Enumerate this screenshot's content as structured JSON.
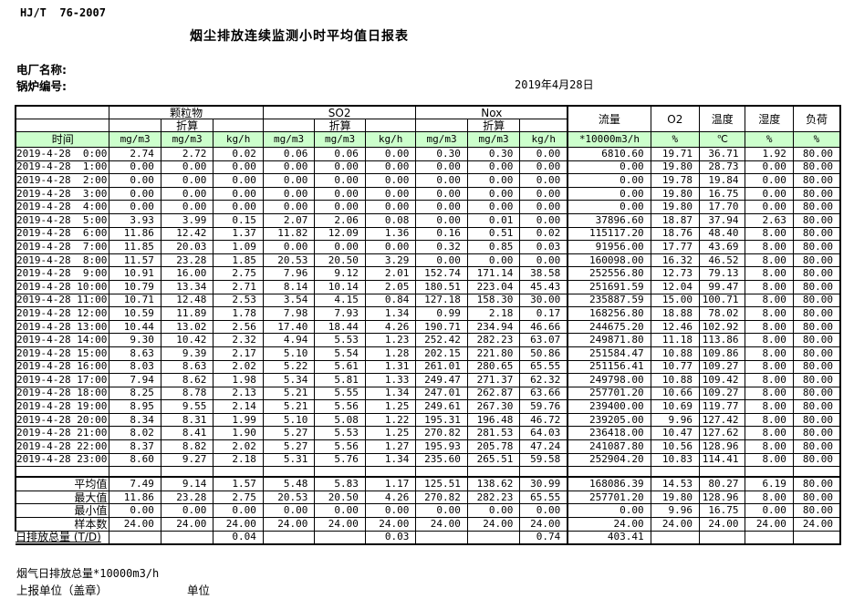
{
  "page": {
    "standard": "HJ/T  76-2007",
    "title": "烟尘排放连续监测小时平均值日报表",
    "plant_label": "电厂名称:",
    "boiler_label": "锅炉编号:",
    "date": "2019年4月28日",
    "footer_note": "烟气日排放总量*10000m3/h",
    "report_unit_label": "上报单位（盖章）",
    "unit_label": "单位"
  },
  "table": {
    "time_label": "时间",
    "converted_label": "折算",
    "groups": {
      "pm": "颗粒物",
      "so2": "SO2",
      "nox": "Nox",
      "flow": "流量",
      "o2": "O2",
      "temp": "温度",
      "humidity": "湿度",
      "load": "负荷"
    },
    "units": [
      "mg/m3",
      "mg/m3",
      "kg/h",
      "mg/m3",
      "mg/m3",
      "kg/h",
      "mg/m3",
      "mg/m3",
      "kg/h",
      "*10000m3/h",
      "%",
      "℃",
      "%",
      "%"
    ],
    "header_green": "#ccffcc",
    "rows": [
      {
        "time": "2019-4-28  0:00",
        "values": [
          "2.74",
          "2.72",
          "0.02",
          "0.06",
          "0.06",
          "0.00",
          "0.30",
          "0.30",
          "0.00",
          "6810.60",
          "19.71",
          "36.71",
          "1.92",
          "80.00"
        ]
      },
      {
        "time": "2019-4-28  1:00",
        "values": [
          "0.00",
          "0.00",
          "0.00",
          "0.00",
          "0.00",
          "0.00",
          "0.00",
          "0.00",
          "0.00",
          "0.00",
          "19.80",
          "28.73",
          "0.00",
          "80.00"
        ]
      },
      {
        "time": "2019-4-28  2:00",
        "values": [
          "0.00",
          "0.00",
          "0.00",
          "0.00",
          "0.00",
          "0.00",
          "0.00",
          "0.00",
          "0.00",
          "0.00",
          "19.78",
          "19.84",
          "0.00",
          "80.00"
        ]
      },
      {
        "time": "2019-4-28  3:00",
        "values": [
          "0.00",
          "0.00",
          "0.00",
          "0.00",
          "0.00",
          "0.00",
          "0.00",
          "0.00",
          "0.00",
          "0.00",
          "19.80",
          "16.75",
          "0.00",
          "80.00"
        ]
      },
      {
        "time": "2019-4-28  4:00",
        "values": [
          "0.00",
          "0.00",
          "0.00",
          "0.00",
          "0.00",
          "0.00",
          "0.00",
          "0.00",
          "0.00",
          "0.00",
          "19.80",
          "17.70",
          "0.00",
          "80.00"
        ]
      },
      {
        "time": "2019-4-28  5:00",
        "values": [
          "3.93",
          "3.99",
          "0.15",
          "2.07",
          "2.06",
          "0.08",
          "0.00",
          "0.01",
          "0.00",
          "37896.60",
          "18.87",
          "37.94",
          "2.63",
          "80.00"
        ]
      },
      {
        "time": "2019-4-28  6:00",
        "values": [
          "11.86",
          "12.42",
          "1.37",
          "11.82",
          "12.09",
          "1.36",
          "0.16",
          "0.51",
          "0.02",
          "115117.20",
          "18.76",
          "48.40",
          "8.00",
          "80.00"
        ]
      },
      {
        "time": "2019-4-28  7:00",
        "values": [
          "11.85",
          "20.03",
          "1.09",
          "0.00",
          "0.00",
          "0.00",
          "0.32",
          "0.85",
          "0.03",
          "91956.00",
          "17.77",
          "43.69",
          "8.00",
          "80.00"
        ]
      },
      {
        "time": "2019-4-28  8:00",
        "values": [
          "11.57",
          "23.28",
          "1.85",
          "20.53",
          "20.50",
          "3.29",
          "0.00",
          "0.00",
          "0.00",
          "160098.00",
          "16.32",
          "46.52",
          "8.00",
          "80.00"
        ]
      },
      {
        "time": "2019-4-28  9:00",
        "values": [
          "10.91",
          "16.00",
          "2.75",
          "7.96",
          "9.12",
          "2.01",
          "152.74",
          "171.14",
          "38.58",
          "252556.80",
          "12.73",
          "79.13",
          "8.00",
          "80.00"
        ]
      },
      {
        "time": "2019-4-28 10:00",
        "values": [
          "10.79",
          "13.34",
          "2.71",
          "8.14",
          "10.14",
          "2.05",
          "180.51",
          "223.04",
          "45.43",
          "251691.59",
          "12.04",
          "99.47",
          "8.00",
          "80.00"
        ]
      },
      {
        "time": "2019-4-28 11:00",
        "values": [
          "10.71",
          "12.48",
          "2.53",
          "3.54",
          "4.15",
          "0.84",
          "127.18",
          "158.30",
          "30.00",
          "235887.59",
          "15.00",
          "100.71",
          "8.00",
          "80.00"
        ]
      },
      {
        "time": "2019-4-28 12:00",
        "values": [
          "10.59",
          "11.89",
          "1.78",
          "7.98",
          "7.93",
          "1.34",
          "0.99",
          "2.18",
          "0.17",
          "168256.80",
          "18.88",
          "78.02",
          "8.00",
          "80.00"
        ]
      },
      {
        "time": "2019-4-28 13:00",
        "values": [
          "10.44",
          "13.02",
          "2.56",
          "17.40",
          "18.44",
          "4.26",
          "190.71",
          "234.94",
          "46.66",
          "244675.20",
          "12.46",
          "102.92",
          "8.00",
          "80.00"
        ]
      },
      {
        "time": "2019-4-28 14:00",
        "values": [
          "9.30",
          "10.42",
          "2.32",
          "4.94",
          "5.53",
          "1.23",
          "252.42",
          "282.23",
          "63.07",
          "249871.80",
          "11.18",
          "113.86",
          "8.00",
          "80.00"
        ]
      },
      {
        "time": "2019-4-28 15:00",
        "values": [
          "8.63",
          "9.39",
          "2.17",
          "5.10",
          "5.54",
          "1.28",
          "202.15",
          "221.80",
          "50.86",
          "251584.47",
          "10.88",
          "109.86",
          "8.00",
          "80.00"
        ]
      },
      {
        "time": "2019-4-28 16:00",
        "values": [
          "8.03",
          "8.63",
          "2.02",
          "5.22",
          "5.61",
          "1.31",
          "261.01",
          "280.65",
          "65.55",
          "251156.41",
          "10.77",
          "109.27",
          "8.00",
          "80.00"
        ]
      },
      {
        "time": "2019-4-28 17:00",
        "values": [
          "7.94",
          "8.62",
          "1.98",
          "5.34",
          "5.81",
          "1.33",
          "249.47",
          "271.37",
          "62.32",
          "249798.00",
          "10.88",
          "109.42",
          "8.00",
          "80.00"
        ]
      },
      {
        "time": "2019-4-28 18:00",
        "values": [
          "8.25",
          "8.78",
          "2.13",
          "5.21",
          "5.55",
          "1.34",
          "247.01",
          "262.87",
          "63.66",
          "257701.20",
          "10.66",
          "109.27",
          "8.00",
          "80.00"
        ]
      },
      {
        "time": "2019-4-28 19:00",
        "values": [
          "8.95",
          "9.55",
          "2.14",
          "5.21",
          "5.56",
          "1.25",
          "249.61",
          "267.30",
          "59.76",
          "239400.00",
          "10.69",
          "119.77",
          "8.00",
          "80.00"
        ]
      },
      {
        "time": "2019-4-28 20:00",
        "values": [
          "8.34",
          "8.31",
          "1.99",
          "5.10",
          "5.08",
          "1.22",
          "195.31",
          "196.48",
          "46.72",
          "239205.00",
          "9.96",
          "127.42",
          "8.00",
          "80.00"
        ]
      },
      {
        "time": "2019-4-28 21:00",
        "values": [
          "8.02",
          "8.41",
          "1.90",
          "5.27",
          "5.53",
          "1.25",
          "270.82",
          "281.53",
          "64.03",
          "236418.00",
          "10.47",
          "127.62",
          "8.00",
          "80.00"
        ]
      },
      {
        "time": "2019-4-28 22:00",
        "values": [
          "8.37",
          "8.82",
          "2.02",
          "5.27",
          "5.56",
          "1.27",
          "195.93",
          "205.78",
          "47.24",
          "241087.80",
          "10.56",
          "128.96",
          "8.00",
          "80.00"
        ]
      },
      {
        "time": "2019-4-28 23:00",
        "values": [
          "8.60",
          "9.27",
          "2.18",
          "5.31",
          "5.76",
          "1.34",
          "235.60",
          "265.51",
          "59.58",
          "252904.20",
          "10.83",
          "114.41",
          "8.00",
          "80.00"
        ]
      }
    ],
    "summary": [
      {
        "label": "平均值",
        "values": [
          "7.49",
          "9.14",
          "1.57",
          "5.48",
          "5.83",
          "1.17",
          "125.51",
          "138.62",
          "30.99",
          "168086.39",
          "14.53",
          "80.27",
          "6.19",
          "80.00"
        ]
      },
      {
        "label": "最大值",
        "values": [
          "11.86",
          "23.28",
          "2.75",
          "20.53",
          "20.50",
          "4.26",
          "270.82",
          "282.23",
          "65.55",
          "257701.20",
          "19.80",
          "128.96",
          "8.00",
          "80.00"
        ]
      },
      {
        "label": "最小值",
        "values": [
          "0.00",
          "0.00",
          "0.00",
          "0.00",
          "0.00",
          "0.00",
          "0.00",
          "0.00",
          "0.00",
          "0.00",
          "9.96",
          "16.75",
          "0.00",
          "80.00"
        ]
      },
      {
        "label": "样本数",
        "values": [
          "24.00",
          "24.00",
          "24.00",
          "24.00",
          "24.00",
          "24.00",
          "24.00",
          "24.00",
          "24.00",
          "24.00",
          "24.00",
          "24.00",
          "24.00",
          "24.00"
        ]
      },
      {
        "label": "日排放总量 (T/D)",
        "values": [
          "",
          "",
          "0.04",
          "",
          "",
          "0.03",
          "",
          "",
          "0.74",
          "403.41",
          "",
          "",
          "",
          ""
        ]
      }
    ]
  }
}
